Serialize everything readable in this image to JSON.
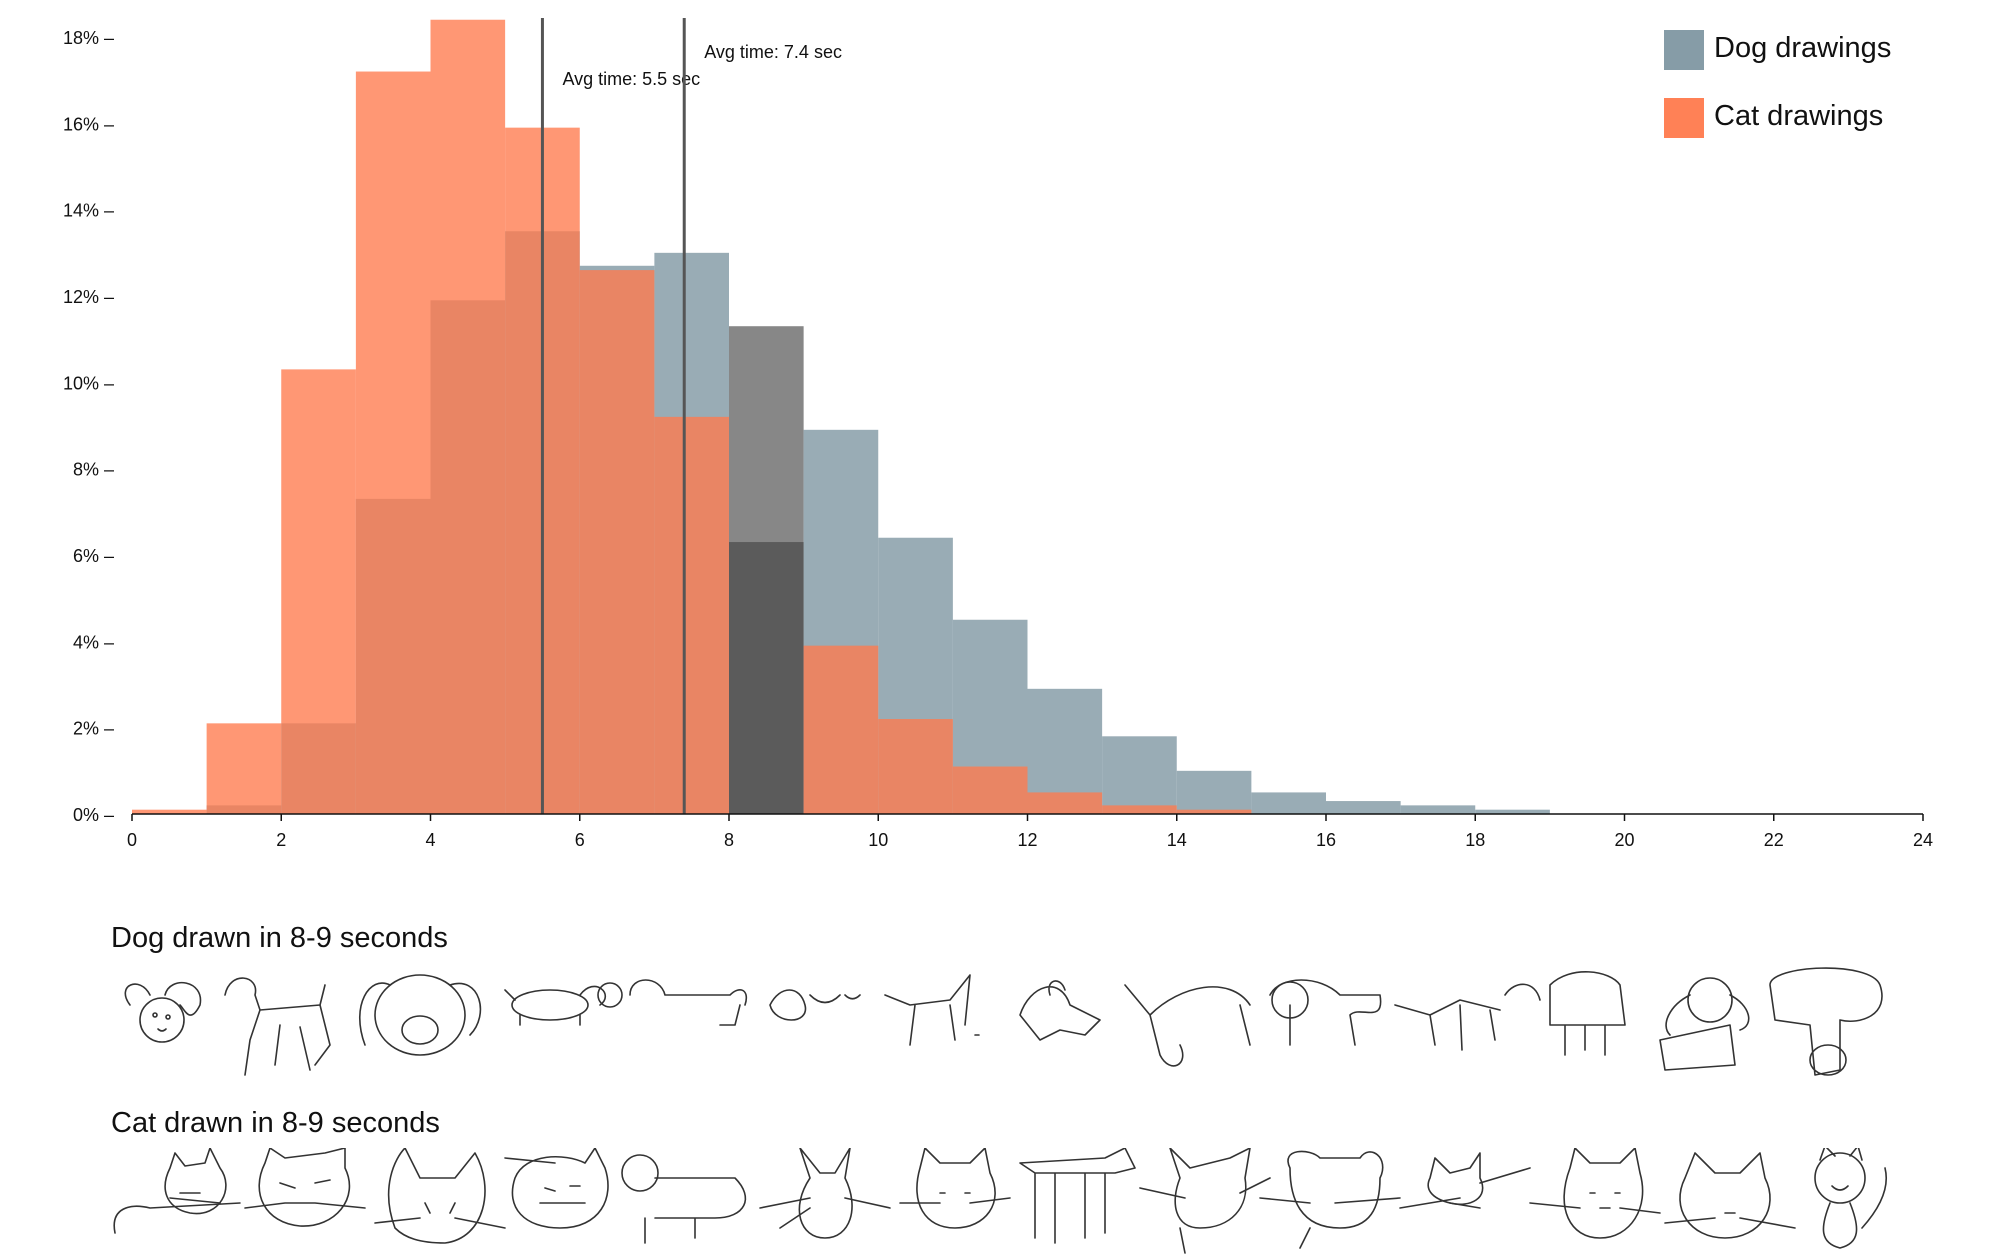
{
  "chart_data": {
    "type": "bar",
    "xlim": [
      0,
      24
    ],
    "ylim": [
      0,
      18
    ],
    "x_ticks": [
      "0",
      "2",
      "4",
      "6",
      "8",
      "10",
      "12",
      "14",
      "16",
      "18",
      "20",
      "22",
      "24"
    ],
    "y_ticks": [
      "0%",
      "2%",
      "4%",
      "6%",
      "8%",
      "10%",
      "12%",
      "14%",
      "16%",
      "18%"
    ],
    "bin_edges": [
      0,
      1,
      2,
      3,
      4,
      5,
      6,
      7,
      8,
      9,
      10,
      11,
      12,
      13,
      14,
      15,
      16,
      17,
      18,
      19
    ],
    "series": [
      {
        "name": "Dog drawings",
        "color": "#7f97a2",
        "values": [
          0,
          0.2,
          2.1,
          7.3,
          11.9,
          13.5,
          12.7,
          13.0,
          11.3,
          8.9,
          6.4,
          4.5,
          2.9,
          1.8,
          1.0,
          0.5,
          0.3,
          0.2,
          0.1
        ]
      },
      {
        "name": "Cat drawings",
        "color": "#ff7a4d",
        "values": [
          0.1,
          2.1,
          10.3,
          17.2,
          18.4,
          15.9,
          12.6,
          9.2,
          6.3,
          3.9,
          2.2,
          1.1,
          0.5,
          0.2,
          0.1,
          0,
          0,
          0,
          0
        ]
      }
    ],
    "highlight_bin": [
      8,
      9
    ],
    "annotations": [
      {
        "x": 5.5,
        "text": "Avg time: 5.5 sec"
      },
      {
        "x": 7.4,
        "text": "Avg time: 7.4 sec"
      }
    ],
    "legend_position": "top-right"
  },
  "examples": {
    "dog_title": "Dog drawn in 8-9 seconds",
    "cat_title": "Cat drawn in 8-9 seconds"
  }
}
